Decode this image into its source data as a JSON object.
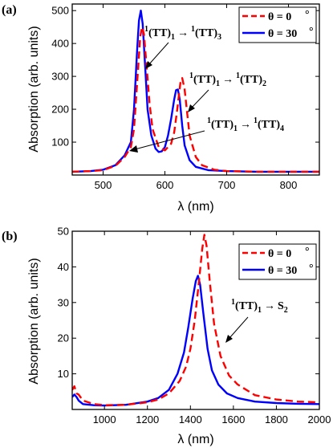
{
  "chart_data": [
    {
      "type": "line",
      "panel_label": "(a)",
      "xlabel": "λ (nm)",
      "ylabel": "Absorption (arb. units)",
      "xlim": [
        450,
        850
      ],
      "ylim": [
        0,
        520
      ],
      "xticks": [
        500,
        600,
        700,
        800
      ],
      "yticks": [
        100,
        200,
        300,
        400,
        500
      ],
      "grid": false,
      "legend_position": "top-right",
      "series": [
        {
          "name": "θ = 0 °",
          "legend_main": "θ = 0",
          "legend_unit": "°",
          "color": "#ff0000",
          "dash": "dashed",
          "x": [
            450,
            480,
            500,
            520,
            535,
            545,
            550,
            555,
            560,
            563,
            566,
            570,
            575,
            580,
            590,
            600,
            610,
            615,
            620,
            625,
            628,
            632,
            636,
            640,
            650,
            660,
            680,
            700,
            750,
            800,
            850
          ],
          "y": [
            10,
            12,
            15,
            28,
            55,
            85,
            140,
            280,
            420,
            450,
            430,
            340,
            220,
            140,
            85,
            75,
            95,
            130,
            200,
            280,
            295,
            260,
            190,
            120,
            55,
            30,
            16,
            12,
            10,
            10,
            10
          ]
        },
        {
          "name": "θ = 30 °",
          "legend_main": "θ = 30",
          "legend_unit": "°",
          "color": "#0000ff",
          "dash": "solid",
          "x": [
            450,
            480,
            500,
            520,
            535,
            545,
            550,
            555,
            558,
            561,
            564,
            568,
            572,
            578,
            585,
            590,
            595,
            600,
            605,
            610,
            615,
            618,
            621,
            624,
            628,
            632,
            640,
            650,
            670,
            700,
            750,
            800,
            850
          ],
          "y": [
            10,
            12,
            16,
            30,
            60,
            100,
            200,
            380,
            470,
            500,
            460,
            330,
            200,
            120,
            80,
            70,
            72,
            85,
            120,
            170,
            230,
            258,
            260,
            230,
            150,
            90,
            45,
            25,
            15,
            12,
            10,
            10,
            10
          ]
        }
      ],
      "annotations": [
        {
          "pre": "1",
          "main": "(TT)",
          "sub": "1",
          "arrow": "→",
          "pre2": "1",
          "main2": "(TT)",
          "sub2": "3"
        },
        {
          "pre": "1",
          "main": "(TT)",
          "sub": "1",
          "arrow": "→",
          "pre2": "1",
          "main2": "(TT)",
          "sub2": "2"
        },
        {
          "pre": "1",
          "main": "(TT)",
          "sub": "1",
          "arrow": "→",
          "pre2": "1",
          "main2": "(TT)",
          "sub2": "4"
        }
      ]
    },
    {
      "type": "line",
      "panel_label": "(b)",
      "xlabel": "λ (nm)",
      "ylabel": "Absorption (arb. units)",
      "xlim": [
        850,
        2000
      ],
      "ylim": [
        0,
        50
      ],
      "xticks": [
        1000,
        1200,
        1400,
        1600,
        1800,
        2000
      ],
      "yticks": [
        10,
        20,
        30,
        40,
        50
      ],
      "grid": false,
      "legend_position": "top-right",
      "series": [
        {
          "name": "θ = 0 °",
          "legend_main": "θ = 0",
          "legend_unit": "°",
          "color": "#ff0000",
          "dash": "dashed",
          "x": [
            850,
            860,
            870,
            880,
            900,
            950,
            1000,
            1100,
            1200,
            1250,
            1300,
            1350,
            1380,
            1400,
            1420,
            1440,
            1455,
            1465,
            1475,
            1490,
            1510,
            1540,
            1580,
            1620,
            1700,
            1800,
            1900,
            2000
          ],
          "y": [
            5.5,
            6.5,
            4.5,
            4.2,
            2.5,
            1.5,
            1.2,
            1.3,
            2.0,
            2.8,
            4.5,
            8,
            12,
            17,
            25,
            36,
            45,
            49,
            46,
            36,
            24,
            15,
            9.5,
            7,
            4,
            2.8,
            2.2,
            2.0
          ]
        },
        {
          "name": "θ = 30 °",
          "legend_main": "θ = 30",
          "legend_unit": "°",
          "color": "#0000ff",
          "dash": "solid",
          "x": [
            850,
            860,
            870,
            880,
            900,
            950,
            1000,
            1100,
            1200,
            1250,
            1300,
            1340,
            1370,
            1390,
            1410,
            1425,
            1435,
            1445,
            1460,
            1480,
            1500,
            1530,
            1570,
            1620,
            1700,
            1800,
            1900,
            2000
          ],
          "y": [
            3.5,
            4.2,
            3.5,
            2.5,
            1.5,
            1.2,
            1.1,
            1.3,
            2.2,
            3.2,
            5.5,
            10,
            16,
            23,
            31,
            36,
            37.5,
            35,
            27,
            17,
            11,
            7,
            4.5,
            3.2,
            2.2,
            1.8,
            1.6,
            1.5
          ]
        }
      ],
      "annotations": [
        {
          "pre": "1",
          "main": "(TT)",
          "sub": "1",
          "arrow": "→",
          "main2": "S",
          "sub2": "2"
        }
      ]
    }
  ]
}
